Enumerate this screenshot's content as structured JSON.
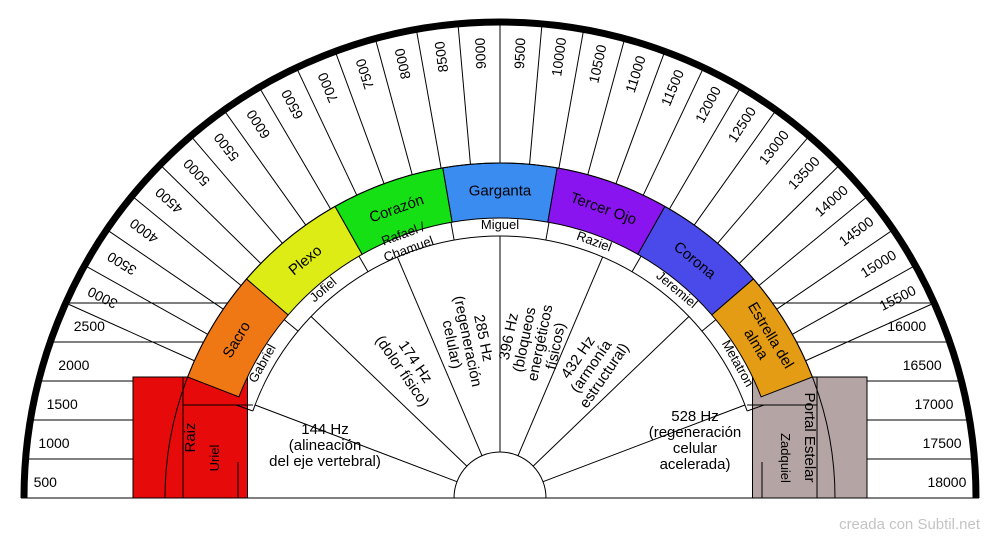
{
  "frequency_scale": [
    "500",
    "1000",
    "1500",
    "2000",
    "2500",
    "3000",
    "3500",
    "4000",
    "4500",
    "5000",
    "5500",
    "6000",
    "6500",
    "7000",
    "7500",
    "8000",
    "8500",
    "9000",
    "9500",
    "10000",
    "10500",
    "11000",
    "11500",
    "12000",
    "12500",
    "13000",
    "13500",
    "14000",
    "14500",
    "15000",
    "15500",
    "16000",
    "16500",
    "17000",
    "17500",
    "18000"
  ],
  "chakras": [
    {
      "name": "Raiz",
      "color": "#e60a0a"
    },
    {
      "name": "Sacro",
      "color": "#f07814"
    },
    {
      "name": "Plexo",
      "color": "#dcec14"
    },
    {
      "name": "Corazón",
      "color": "#14e014"
    },
    {
      "name": "Garganta",
      "color": "#3a8cf0"
    },
    {
      "name": "Tercer Ojo",
      "color": "#8a14f0"
    },
    {
      "name": "Corona",
      "color": "#4a4aea"
    },
    {
      "name": "Estrella del alma",
      "color": "#e49c14"
    },
    {
      "name": "Portal Estelar",
      "color": "#b4a4a4"
    }
  ],
  "archangels": [
    "Uriel",
    "Gabriel",
    "Jofiel",
    "Rafael / Chamuel",
    "Miguel",
    "Raziel",
    "Jeremiel",
    "Metatron",
    "Zadquiel"
  ],
  "solfeggio": [
    {
      "lines": [
        "144 Hz",
        "(alineación",
        "del eje    vertebral)"
      ]
    },
    {
      "lines": [
        "174 Hz",
        "(dolor físico)"
      ]
    },
    {
      "lines": [
        "285 Hz",
        "(regeneración",
        "celular)"
      ]
    },
    {
      "lines": [
        "396 Hz",
        "(bloqueos",
        "energéticos",
        "físicos)"
      ]
    },
    {
      "lines": [
        "432 Hz",
        "(armonía",
        "estructural)"
      ]
    },
    {
      "lines": [
        "528 Hz",
        "(regeneración",
        "celular",
        "acelerada)"
      ]
    }
  ],
  "watermark": "creada con Subtil.net"
}
